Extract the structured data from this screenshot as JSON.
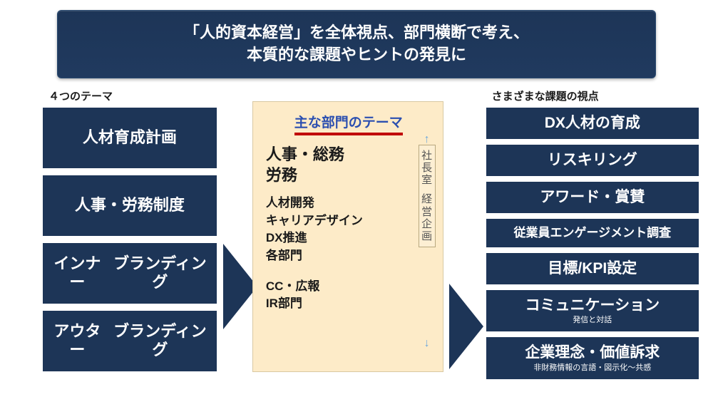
{
  "colors": {
    "navy": "#1d3557",
    "cream": "#fdebc8",
    "red_underline": "#c00000",
    "link_blue": "#2b4fb0",
    "arrow_light_blue": "#6fa8dc"
  },
  "header": {
    "line1": "「人的資本経営」を全体視点、部門横断で考え、",
    "line2": "本質的な課題やヒントの発見に"
  },
  "left": {
    "title": "４つのテーマ",
    "themes": [
      "人材育成計画",
      "人事・労務制度",
      "インナー\nブランディング",
      "アウター\nブランディング"
    ]
  },
  "center": {
    "title": "主な部門のテーマ",
    "big_depts": "人事・総務\n労務",
    "mid_depts": "人材開発\nキャリアデザイン\nDX推進\n各部門",
    "low_depts": "CC・広報\nIR部門",
    "vertical_top": "社長室",
    "vertical_bottom": "経営企画"
  },
  "right": {
    "title": "さまざまな課題の視点",
    "issues": [
      {
        "label": "DX人材の育成",
        "size": "lg"
      },
      {
        "label": "リスキリング",
        "size": "lg"
      },
      {
        "label": "アワード・賞賛",
        "size": "lg"
      },
      {
        "label": "従業員エンゲージメント調査",
        "size": "sm"
      },
      {
        "label": "目標/KPI設定",
        "size": "lg"
      },
      {
        "label": "コミュニケーション",
        "sub": "発信と対話",
        "size": "lg"
      },
      {
        "label": "企業理念・価値訴求",
        "sub": "非財務情報の言語・図示化～共感",
        "size": "lg"
      }
    ]
  }
}
